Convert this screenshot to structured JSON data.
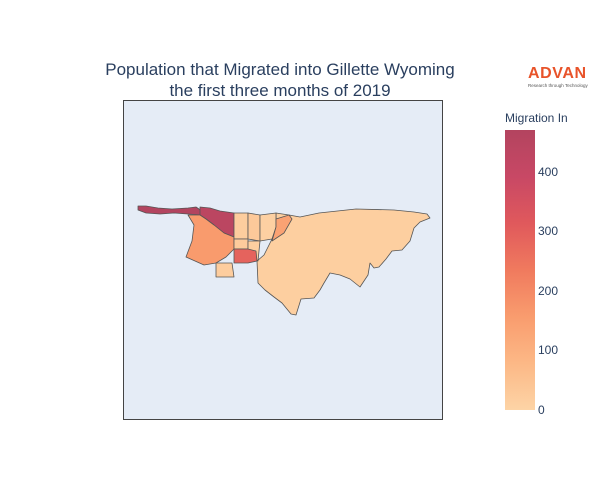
{
  "title": {
    "line1": "Population that Migrated into Gillette Wyoming",
    "line2": "the first three months of 2019"
  },
  "logo": {
    "name": "ADVAN",
    "tagline": "Research through Technology"
  },
  "colorbar": {
    "title": "Migration In",
    "min": 0,
    "max": 470,
    "ticks": [
      "0",
      "100",
      "200",
      "300",
      "400"
    ],
    "colors": [
      "#fdd4a6",
      "#fcb886",
      "#f99c6e",
      "#f07a5e",
      "#e0595c",
      "#c84865",
      "#b3445f"
    ]
  },
  "map": {
    "background": "#e5ecf6",
    "border_color": "#444444",
    "region_values": {
      "northwest-strip": 470,
      "northwest-center": 440,
      "west-block": 160,
      "central-south": 290,
      "northeast-small": 140,
      "north-small-a": 20,
      "north-small-b": 30,
      "north-small-c": 10,
      "center-a": 25,
      "center-b": 15,
      "southwest-small": 20,
      "east-main": 15
    }
  }
}
